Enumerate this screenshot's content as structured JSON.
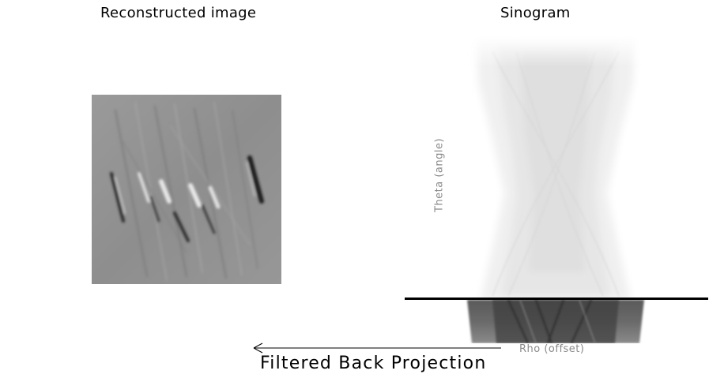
{
  "titles": {
    "reconstructed": "Reconstructed image",
    "sinogram": "Sinogram"
  },
  "axes": {
    "theta": "Theta (angle)",
    "rho": "Rho (offset)"
  },
  "process": {
    "label": "Filtered Back Projection"
  },
  "colors": {
    "line": "#000000",
    "axis_label": "#8a8a8a"
  }
}
